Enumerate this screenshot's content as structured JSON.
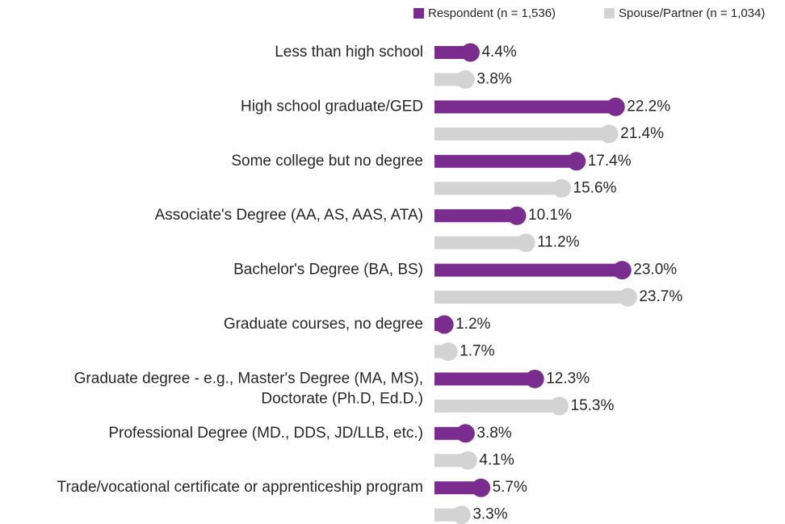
{
  "chart_data": {
    "type": "lollipop",
    "categories": [
      "Less than high school",
      "High school graduate/GED",
      "Some college but no degree",
      "Associate's Degree (AA, AS, AAS, ATA)",
      "Bachelor's Degree (BA, BS)",
      "Graduate courses, no degree",
      "Graduate degree - e.g., Master's Degree (MA, MS),\nDoctorate (Ph.D, Ed.D.)",
      "Professional Degree (MD., DDS, JD/LLB, etc.)",
      "Trade/vocational certificate or apprenticeship program"
    ],
    "series": [
      {
        "name": "Respondent (n = 1,536)",
        "color": "#7b2c8f",
        "values": [
          4.4,
          22.2,
          17.4,
          10.1,
          23.0,
          1.2,
          12.3,
          3.8,
          5.7
        ],
        "value_labels": [
          "4.4%",
          "22.2%",
          "17.4%",
          "10.1%",
          "23.0%",
          "1.2%",
          "12.3%",
          "3.8%",
          "5.7%"
        ]
      },
      {
        "name": "Spouse/Partner (n = 1,034)",
        "color": "#d3d3d3",
        "values": [
          3.8,
          21.4,
          15.6,
          11.2,
          23.7,
          1.7,
          15.3,
          4.1,
          3.3
        ],
        "value_labels": [
          "3.8%",
          "21.4%",
          "15.6%",
          "11.2%",
          "23.7%",
          "1.7%",
          "15.3%",
          "4.1%",
          "3.3%"
        ]
      }
    ],
    "legend": "top-right"
  }
}
